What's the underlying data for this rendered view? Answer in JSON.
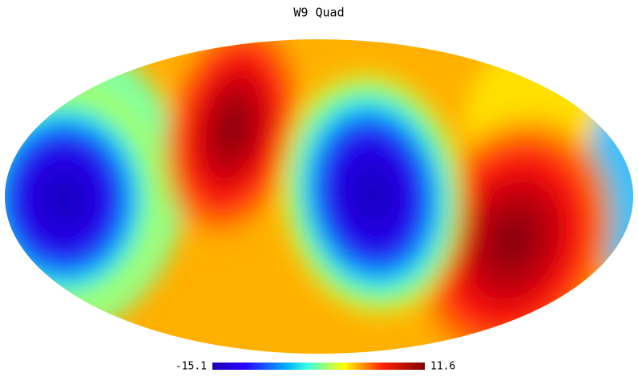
{
  "map": {
    "title": "W9 Quad",
    "projection": "mollweide",
    "colorbar": {
      "min": -15.1,
      "max": 11.6
    }
  }
}
